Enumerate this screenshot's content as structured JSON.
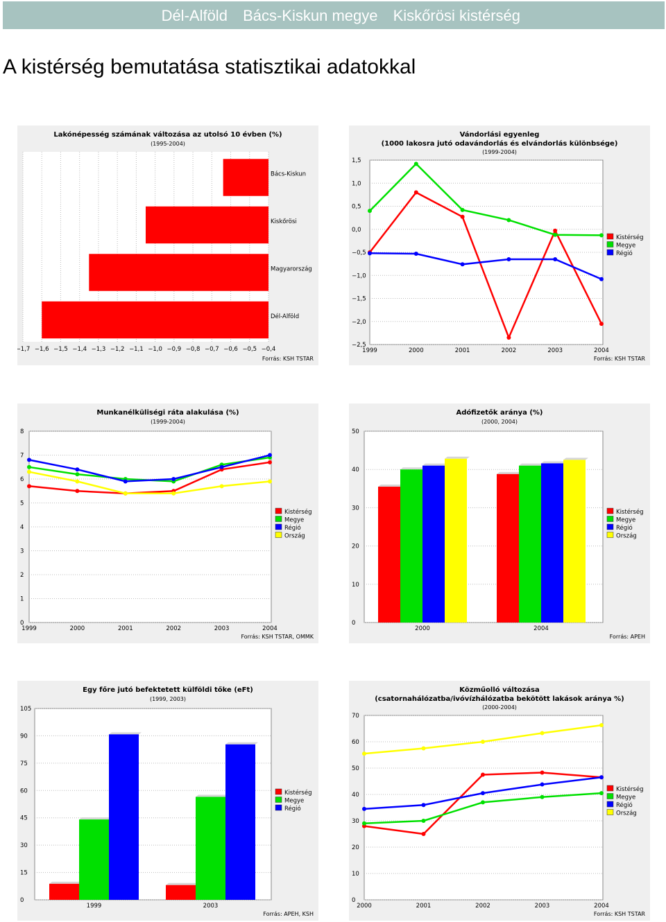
{
  "header": {
    "crumbs": [
      "Dél-Alföld",
      "Bács-Kiskun megye",
      "Kiskőrösi kistérség"
    ],
    "bar_color": "#a7c3c0"
  },
  "page_title": "A kistérség bemutatása statisztikai adatokkal",
  "chart_data": [
    {
      "type": "bar",
      "orientation": "horizontal",
      "title": "Lakónépesség számának változása az utolsó 10 évben (%)",
      "subtitle": "(1995-2004)",
      "categories": [
        "Bács-Kiskun",
        "Kiskőrösi",
        "Magyarország",
        "Dél-Alföld"
      ],
      "values": [
        -0.64,
        -1.05,
        -1.35,
        -1.6
      ],
      "xlim": [
        -1.7,
        -0.4
      ],
      "xticks": [
        "−1,7",
        "−1,6",
        "−1,5",
        "−1,4",
        "−1,3",
        "−1,2",
        "−1,1",
        "−1,0",
        "−0,9",
        "−0,8",
        "−0,7",
        "−0,6",
        "−0,5",
        "−0,4"
      ],
      "color": "#ff0000",
      "source": "Forrás: KSH TSTAR"
    },
    {
      "type": "line",
      "title": "Vándorlási egyenleg",
      "subtitle": "(1000 lakosra jutó odavándorlás és elvándorlás különbsége)",
      "subtitle2": "(1999-2004)",
      "x": [
        "1999",
        "2000",
        "2001",
        "2002",
        "2003",
        "2004"
      ],
      "series": [
        {
          "name": "Kistérség",
          "color": "#ff0000",
          "values": [
            -0.5,
            0.8,
            0.27,
            -2.35,
            -0.03,
            -2.05
          ]
        },
        {
          "name": "Megye",
          "color": "#00e000",
          "values": [
            0.4,
            1.42,
            0.42,
            0.2,
            -0.12,
            -0.13
          ]
        },
        {
          "name": "Régió",
          "color": "#0000ff",
          "values": [
            -0.52,
            -0.53,
            -0.76,
            -0.65,
            -0.65,
            -1.08
          ]
        }
      ],
      "ylim": [
        -2.5,
        1.5
      ],
      "yticks": [
        -2.5,
        -2.0,
        -1.5,
        -1.0,
        -0.5,
        0.0,
        0.5,
        1.0,
        1.5
      ],
      "ytick_labels": [
        "−2,5",
        "−2,0",
        "−1,5",
        "−1,0",
        "−0,5",
        "0,0",
        "0,5",
        "1,0",
        "1,5"
      ],
      "source": "Forrás: KSH TSTAR"
    },
    {
      "type": "line",
      "title": "Munkanélküliségi ráta alakulása (%)",
      "subtitle": "(1999-2004)",
      "x": [
        "1999",
        "2000",
        "2001",
        "2002",
        "2003",
        "2004"
      ],
      "series": [
        {
          "name": "Kistérség",
          "color": "#ff0000",
          "values": [
            5.7,
            5.5,
            5.4,
            5.5,
            6.4,
            6.7
          ]
        },
        {
          "name": "Megye",
          "color": "#00e000",
          "values": [
            6.5,
            6.2,
            6.0,
            5.9,
            6.6,
            6.9
          ]
        },
        {
          "name": "Régió",
          "color": "#0000ff",
          "values": [
            6.8,
            6.4,
            5.9,
            6.0,
            6.5,
            7.0
          ]
        },
        {
          "name": "Ország",
          "color": "#ffff00",
          "values": [
            6.3,
            5.9,
            5.4,
            5.4,
            5.7,
            5.9
          ]
        }
      ],
      "ylim": [
        0,
        8
      ],
      "yticks": [
        0,
        1,
        2,
        3,
        4,
        5,
        6,
        7,
        8
      ],
      "ytick_labels": [
        "0",
        "1",
        "2",
        "3",
        "4",
        "5",
        "6",
        "7",
        "8"
      ],
      "source": "Forrás: KSH TSTAR, OMMK"
    },
    {
      "type": "bar",
      "title": "Adófizetők aránya (%)",
      "subtitle": "(2000, 2004)",
      "categories": [
        "2000",
        "2004"
      ],
      "series": [
        {
          "name": "Kistérség",
          "color": "#ff0000",
          "values": [
            35.5,
            38.8
          ]
        },
        {
          "name": "Megye",
          "color": "#00e000",
          "values": [
            40,
            41
          ]
        },
        {
          "name": "Régió",
          "color": "#0000ff",
          "values": [
            41,
            41.6
          ]
        },
        {
          "name": "Ország",
          "color": "#ffff00",
          "values": [
            42.8,
            42.5
          ]
        }
      ],
      "ylim": [
        0,
        50
      ],
      "yticks": [
        0,
        10,
        20,
        30,
        40,
        50
      ],
      "ytick_labels": [
        "0",
        "10",
        "20",
        "30",
        "40",
        "50"
      ],
      "source": "Forrás: APEH"
    },
    {
      "type": "bar",
      "title": "Egy főre jutó befektetett külföldi tőke (eFt)",
      "subtitle": "(1999, 2003)",
      "categories": [
        "1999",
        "2003"
      ],
      "series": [
        {
          "name": "Kistérség",
          "color": "#ff0000",
          "values": [
            8.8,
            8.1
          ]
        },
        {
          "name": "Megye",
          "color": "#00e000",
          "values": [
            44.1,
            56.5
          ]
        },
        {
          "name": "Régió",
          "color": "#0000ff",
          "values": [
            90.8,
            85.3
          ]
        }
      ],
      "ylim": [
        0,
        105
      ],
      "yticks": [
        0,
        15,
        30,
        45,
        60,
        75,
        90,
        105
      ],
      "ytick_labels": [
        "0",
        "15",
        "30",
        "45",
        "60",
        "75",
        "90",
        "105"
      ],
      "source": "Forrás: APEH, KSH"
    },
    {
      "type": "line",
      "title": "Közműolló változása",
      "subtitle": "(csatornahálózatba/ivóvízhálózatba bekötött lakások aránya %)",
      "subtitle2": "(2000-2004)",
      "x": [
        "2000",
        "2001",
        "2002",
        "2003",
        "2004"
      ],
      "series": [
        {
          "name": "Kistérség",
          "color": "#ff0000",
          "values": [
            28,
            25,
            47.5,
            48.3,
            46.5
          ]
        },
        {
          "name": "Megye",
          "color": "#00e000",
          "values": [
            29,
            30,
            37,
            39,
            40.5
          ]
        },
        {
          "name": "Régió",
          "color": "#0000ff",
          "values": [
            34.5,
            36,
            40.5,
            43.8,
            46.5
          ]
        },
        {
          "name": "Ország",
          "color": "#ffff00",
          "values": [
            55.5,
            57.5,
            60,
            63.3,
            66.3
          ]
        }
      ],
      "ylim": [
        0,
        70
      ],
      "yticks": [
        0,
        10,
        20,
        30,
        40,
        50,
        60,
        70
      ],
      "ytick_labels": [
        "0",
        "10",
        "20",
        "30",
        "40",
        "50",
        "60",
        "70"
      ],
      "source": "Forrás: KSH TSTAR"
    }
  ]
}
